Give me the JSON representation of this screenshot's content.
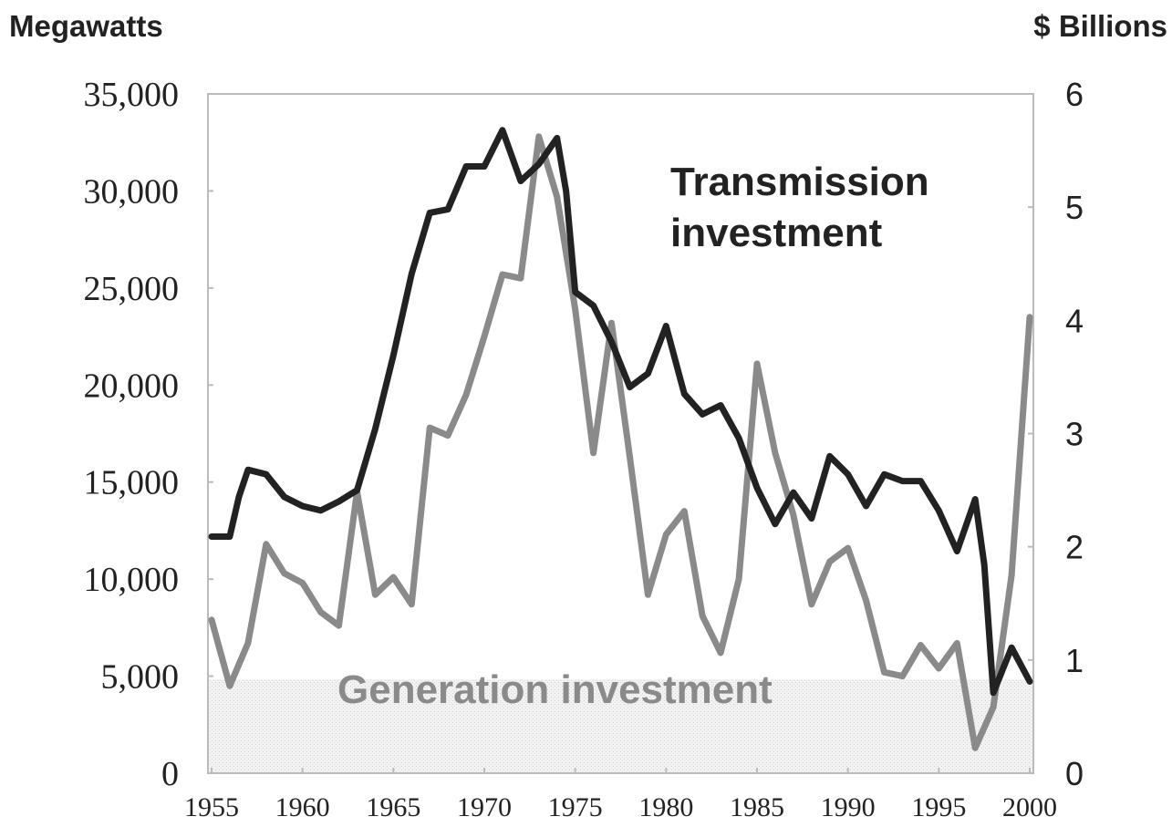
{
  "chart_data": {
    "type": "line",
    "y_title": "Megawatts",
    "y2_title": "$ Billions",
    "xlim": [
      1954.8,
      2000.2
    ],
    "xticks": [
      1955,
      1960,
      1965,
      1970,
      1975,
      1980,
      1985,
      1990,
      1995,
      2000
    ],
    "ylim": [
      0,
      35000
    ],
    "yticks": [
      0,
      {
        "value": 5000,
        "label": "5,000"
      },
      {
        "value": 10000,
        "label": "10,000"
      },
      {
        "value": 15000,
        "label": "15,000"
      },
      {
        "value": 20000,
        "label": "20,000"
      },
      {
        "value": 25000,
        "label": "25,000"
      },
      {
        "value": 30000,
        "label": "30,000"
      },
      {
        "value": 35000,
        "label": "35,000"
      }
    ],
    "y2lim": [
      0,
      6
    ],
    "y2ticks": [
      0,
      1,
      2,
      3,
      4,
      5,
      6
    ],
    "series": [
      {
        "name": "Generation investment",
        "color": "#8a8a8a",
        "axis": "y",
        "x": [
          1955,
          1956,
          1957,
          1958,
          1959,
          1960,
          1961,
          1962,
          1963,
          1964,
          1965,
          1966,
          1967,
          1968,
          1969,
          1970,
          1971,
          1972,
          1973,
          1974,
          1975,
          1976,
          1977,
          1978,
          1979,
          1980,
          1981,
          1982,
          1983,
          1984,
          1985,
          1986,
          1987,
          1988,
          1989,
          1990,
          1991,
          1992,
          1993,
          1994,
          1995,
          1996,
          1997,
          1998,
          1999,
          2000
        ],
        "values": [
          7900,
          4500,
          6700,
          11800,
          10300,
          9800,
          8300,
          7600,
          14500,
          9200,
          10100,
          8700,
          17800,
          17400,
          19500,
          22500,
          25700,
          25500,
          32800,
          29700,
          23900,
          16500,
          23200,
          16300,
          9200,
          12300,
          13500,
          8100,
          6200,
          10000,
          21100,
          16500,
          13300,
          8700,
          10900,
          11600,
          8900,
          5200,
          5000,
          6600,
          5400,
          6700,
          1300,
          3400,
          10200,
          23500
        ]
      },
      {
        "name": "Transmission investment",
        "color": "#222222",
        "axis": "y2",
        "x": [
          1955,
          1956,
          1956.5,
          1957,
          1958,
          1959,
          1960,
          1961,
          1962,
          1963,
          1964,
          1965,
          1966,
          1967,
          1968,
          1969,
          1970,
          1971,
          1972,
          1973,
          1974,
          1974.5,
          1975,
          1976,
          1977,
          1978,
          1979,
          1980,
          1981,
          1982,
          1983,
          1984,
          1985,
          1986,
          1987,
          1988,
          1989,
          1990,
          1991,
          1992,
          1993,
          1994,
          1995,
          1996,
          1997,
          1997.5,
          1998,
          1999,
          2000
        ],
        "values": [
          2.09,
          2.09,
          2.44,
          2.68,
          2.64,
          2.44,
          2.36,
          2.32,
          2.4,
          2.5,
          3.04,
          3.69,
          4.41,
          4.95,
          4.98,
          5.36,
          5.36,
          5.68,
          5.23,
          5.38,
          5.61,
          5.14,
          4.25,
          4.13,
          3.81,
          3.41,
          3.53,
          3.95,
          3.35,
          3.17,
          3.25,
          2.96,
          2.52,
          2.2,
          2.48,
          2.25,
          2.8,
          2.64,
          2.36,
          2.64,
          2.58,
          2.58,
          2.32,
          1.96,
          2.42,
          1.84,
          0.71,
          1.11,
          0.81
        ]
      }
    ]
  }
}
